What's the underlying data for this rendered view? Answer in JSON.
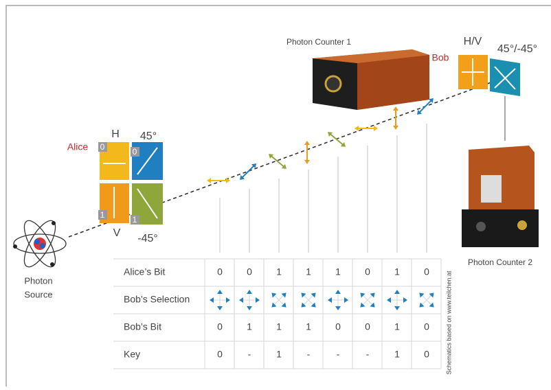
{
  "alice": {
    "name": "Alice",
    "h": "H",
    "d45": "45°",
    "v": "V",
    "dm45": "-45°",
    "bits": [
      "0",
      "0",
      "1",
      "1"
    ]
  },
  "bob": {
    "name": "Bob",
    "hv": "H/V",
    "diag": "45°/-45°"
  },
  "photon_counter_1": "Photon Counter 1",
  "photon_counter_2": "Photon Counter 2",
  "photon_source": [
    "Photon",
    "Source"
  ],
  "credit": "Schematics based on www.teilchen.at",
  "table": {
    "rows": [
      {
        "label": "Alice’s Bit",
        "cells": [
          "0",
          "0",
          "1",
          "1",
          "1",
          "0",
          "1",
          "0"
        ]
      },
      {
        "label": "Bob’s Selection",
        "cells": []
      },
      {
        "label": "Bob’s Bit",
        "cells": [
          "0",
          "1",
          "1",
          "1",
          "0",
          "0",
          "1",
          "0"
        ]
      },
      {
        "label": "Key",
        "cells": [
          "0",
          "-",
          "1",
          "-",
          "-",
          "-",
          "1",
          "0"
        ]
      }
    ]
  }
}
